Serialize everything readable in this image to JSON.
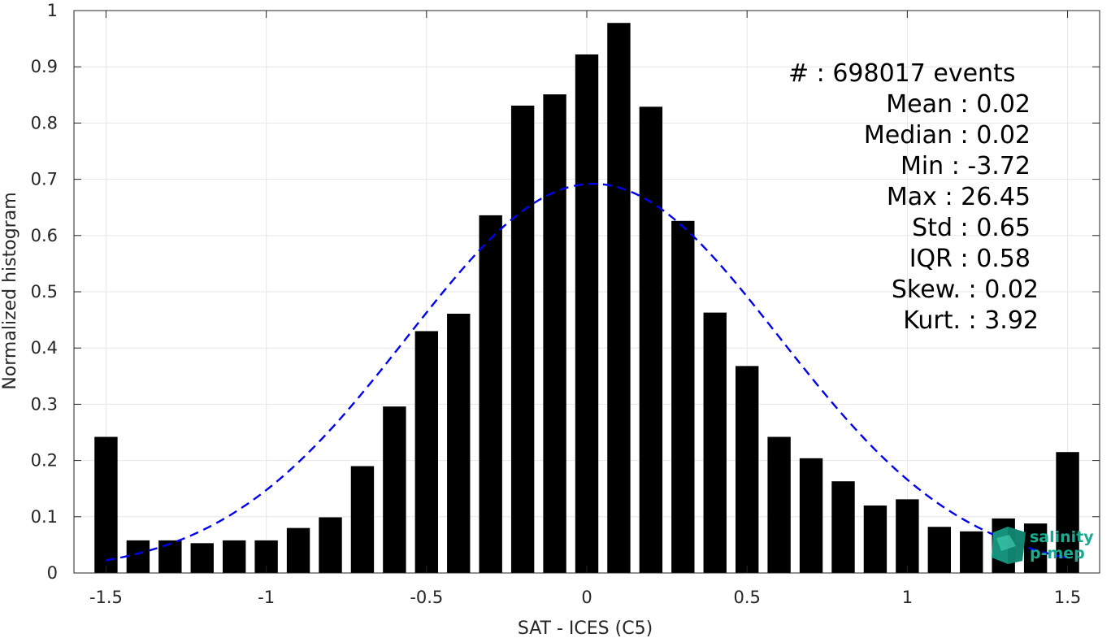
{
  "chart_data": {
    "type": "bar",
    "xlabel": "SAT - ICES (C5)",
    "ylabel": "Normalized histogram",
    "xlim": [
      -1.6,
      1.6
    ],
    "ylim": [
      0,
      1
    ],
    "grid": true,
    "x_ticks": [
      -1.5,
      -1,
      -0.5,
      0,
      0.5,
      1,
      1.5
    ],
    "x_tick_labels": [
      "-1.5",
      "-1",
      "-0.5",
      "0",
      "0.5",
      "1",
      "1.5"
    ],
    "y_ticks": [
      0,
      0.1,
      0.2,
      0.3,
      0.4,
      0.5,
      0.6,
      0.7,
      0.8,
      0.9,
      1
    ],
    "y_tick_labels": [
      "0",
      "0.1",
      "0.2",
      "0.3",
      "0.4",
      "0.5",
      "0.6",
      "0.7",
      "0.8",
      "0.9",
      "1"
    ],
    "bar_color": "#000000",
    "bars": {
      "x": [
        -1.5,
        -1.4,
        -1.3,
        -1.2,
        -1.1,
        -1.0,
        -0.9,
        -0.8,
        -0.7,
        -0.6,
        -0.5,
        -0.4,
        -0.3,
        -0.2,
        -0.1,
        0.0,
        0.1,
        0.2,
        0.3,
        0.4,
        0.5,
        0.6,
        0.7,
        0.8,
        0.9,
        1.0,
        1.1,
        1.2,
        1.3,
        1.4,
        1.5
      ],
      "values": [
        0.242,
        0.058,
        0.058,
        0.053,
        0.058,
        0.058,
        0.08,
        0.099,
        0.19,
        0.296,
        0.43,
        0.461,
        0.636,
        0.831,
        0.851,
        0.922,
        0.978,
        0.829,
        0.626,
        0.463,
        0.368,
        0.242,
        0.204,
        0.163,
        0.12,
        0.131,
        0.082,
        0.074,
        0.097,
        0.088,
        0.215
      ]
    },
    "fit_curve": {
      "style": "dashed",
      "color": "#0000ee",
      "mean": 0.02,
      "std": 0.58,
      "peak": 0.692,
      "x_range": [
        -1.5,
        1.5
      ]
    },
    "stats": [
      {
        "label": "#",
        "value": ": 698017 events"
      },
      {
        "label": "Mean",
        "value": ": 0.02"
      },
      {
        "label": "Median",
        "value": ": 0.02"
      },
      {
        "label": "Min",
        "value": ": -3.72"
      },
      {
        "label": "Max",
        "value": ": 26.45"
      },
      {
        "label": "Std",
        "value": ": 0.65"
      },
      {
        "label": "IQR",
        "value": ": 0.58"
      },
      {
        "label": "Skew.",
        "value": ": 0.02"
      },
      {
        "label": "Kurt.",
        "value": ": 3.92"
      }
    ]
  },
  "logo": {
    "line1": "salinity",
    "line2": "p-mep",
    "icon": "cube-logo-icon",
    "color": "#1aaa90"
  }
}
